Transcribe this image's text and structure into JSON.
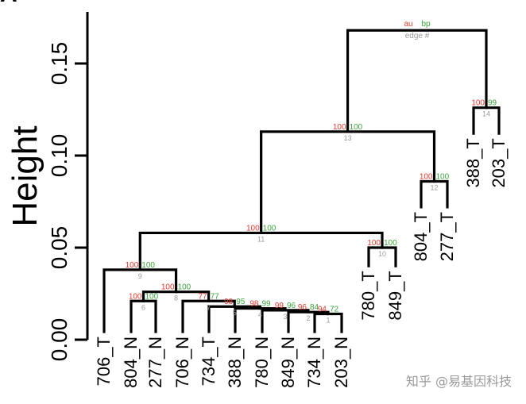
{
  "chart_data": {
    "type": "dendrogram",
    "ylabel": "Height",
    "ylim": [
      0,
      0.17
    ],
    "yticks": [
      0.0,
      0.05,
      0.1,
      0.15
    ],
    "ytick_labels": [
      "0.00",
      "0.05",
      "0.10",
      "0.15"
    ],
    "legend": {
      "au": "au",
      "bp": "bp",
      "edge": "edge #"
    },
    "leaves": [
      "706_T",
      "804_N",
      "277_N",
      "706_N",
      "734_T",
      "388_N",
      "780_N",
      "849_N",
      "734_N",
      "203_N",
      "780_T",
      "849_T",
      "804_T",
      "277_T",
      "388_T",
      "203_T"
    ],
    "merges": [
      {
        "edge": 1,
        "left": 8,
        "right": 9,
        "height": 0.014,
        "au": 94,
        "bp": 72
      },
      {
        "edge": 2,
        "left": 7,
        "right": "e1",
        "height": 0.015,
        "au": 96,
        "bp": 84
      },
      {
        "edge": 3,
        "left": 6,
        "right": "e2",
        "height": 0.016,
        "au": 99,
        "bp": 96
      },
      {
        "edge": 4,
        "left": 5,
        "right": "e3",
        "height": 0.017,
        "au": 98,
        "bp": 99
      },
      {
        "edge": 5,
        "left": 4,
        "right": "e4",
        "height": 0.018,
        "au": 98,
        "bp": 95
      },
      {
        "edge": 6,
        "left": 1,
        "right": 2,
        "height": 0.021,
        "au": 100,
        "bp": 100
      },
      {
        "edge": 7,
        "left": 3,
        "right": "e5",
        "height": 0.021,
        "au": 77,
        "bp": 77
      },
      {
        "edge": 8,
        "left": "e6",
        "right": "e7",
        "height": 0.026,
        "au": 100,
        "bp": 100
      },
      {
        "edge": 9,
        "left": 0,
        "right": "e8",
        "height": 0.038,
        "au": 100,
        "bp": 100
      },
      {
        "edge": 10,
        "left": 10,
        "right": 11,
        "height": 0.05,
        "au": 100,
        "bp": 100
      },
      {
        "edge": 11,
        "left": "e9",
        "right": "e10",
        "height": 0.058,
        "au": 100,
        "bp": 100
      },
      {
        "edge": 12,
        "left": 12,
        "right": 13,
        "height": 0.086,
        "au": 100,
        "bp": 100
      },
      {
        "edge": 13,
        "left": "e11",
        "right": "e12",
        "height": 0.113,
        "au": 100,
        "bp": 100
      },
      {
        "edge": 14,
        "left": 14,
        "right": 15,
        "height": 0.126,
        "au": 100,
        "bp": 99
      },
      {
        "edge": 15,
        "left": "e13",
        "right": "e14",
        "height": 0.168,
        "au": "",
        "bp": ""
      }
    ]
  },
  "panel_letter": "A",
  "watermark": "知乎 @易基因科技",
  "colors": {
    "au": "#e8392b",
    "bp": "#3da63d",
    "edge": "#9a9a9a",
    "line": "#000000"
  }
}
